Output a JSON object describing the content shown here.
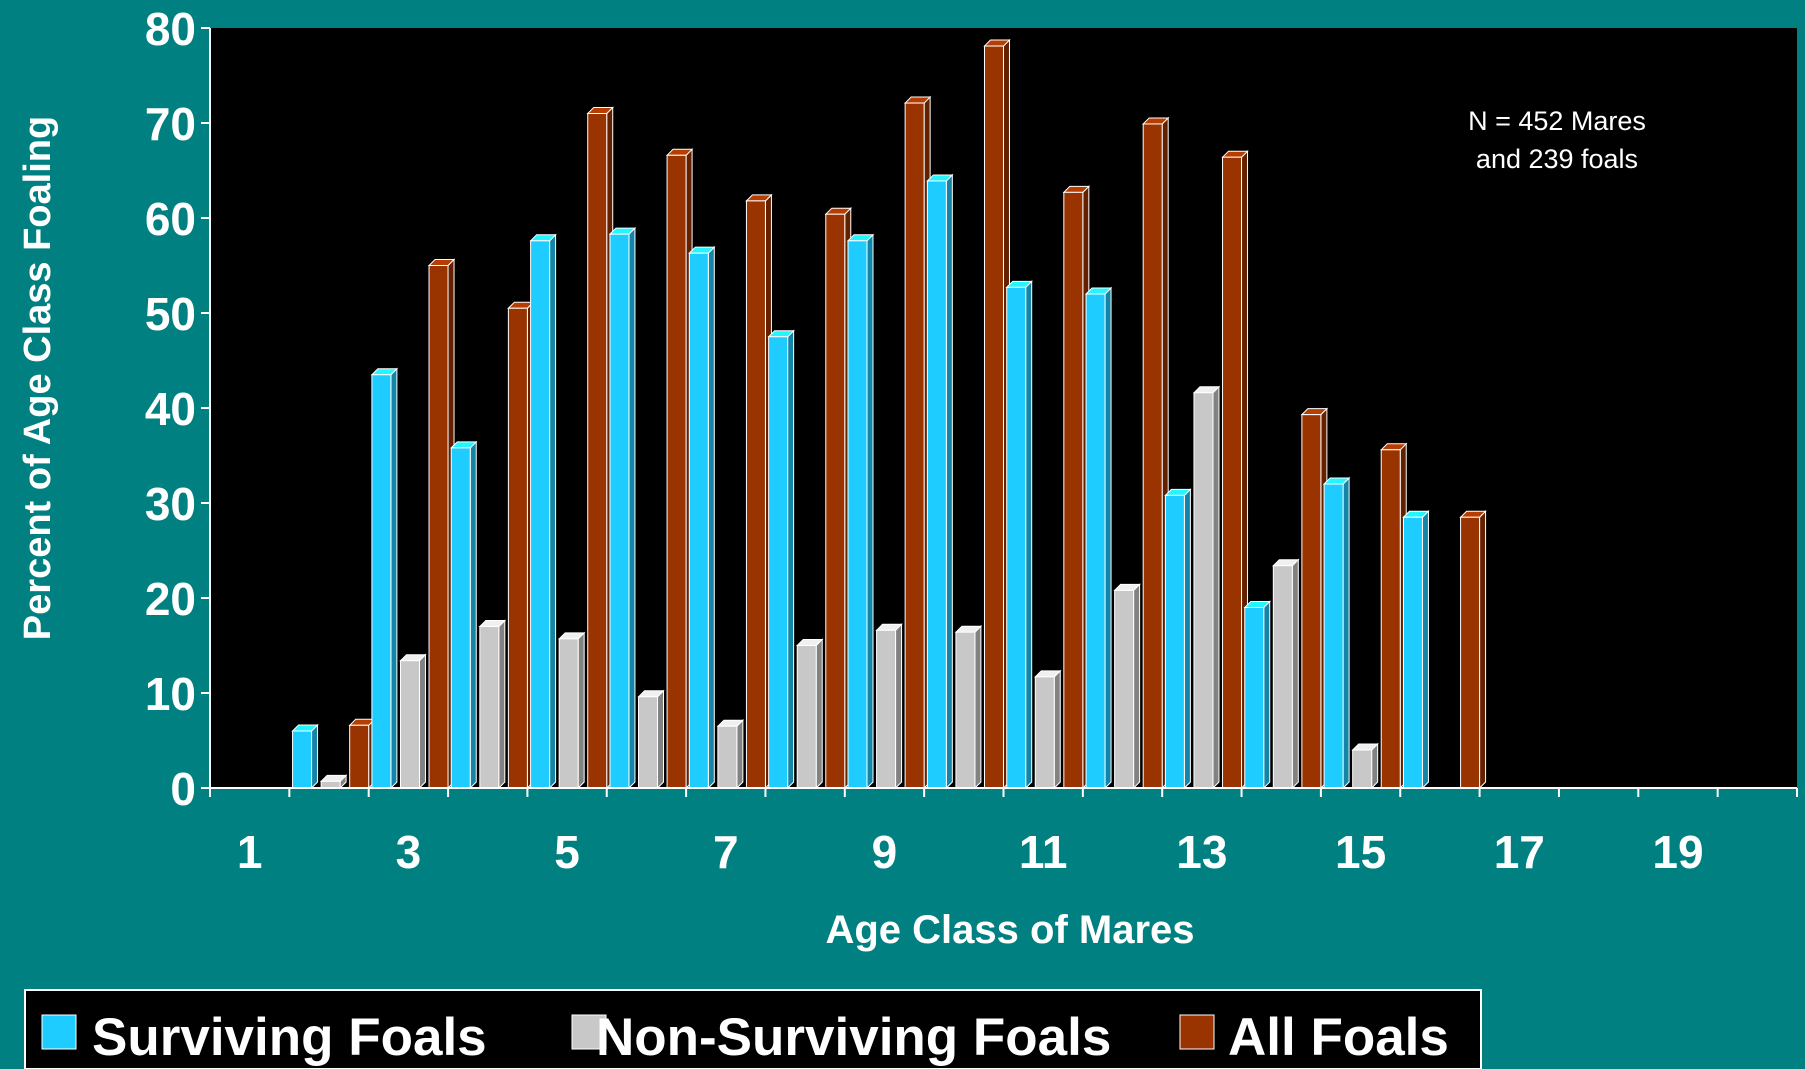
{
  "chart_data": {
    "type": "bar",
    "title": "",
    "xlabel": "Age Class of Mares",
    "ylabel": "Percent of Age Class Foaling",
    "ylim": [
      0,
      80
    ],
    "yticks": [
      "0",
      "10",
      "20",
      "30",
      "40",
      "50",
      "60",
      "70",
      "80"
    ],
    "categories": [
      1,
      2,
      3,
      4,
      5,
      6,
      7,
      8,
      9,
      10,
      11,
      12,
      13,
      14,
      15,
      16,
      17,
      18,
      19,
      20
    ],
    "xtick_labels": [
      "1",
      "3",
      "5",
      "7",
      "9",
      "11",
      "13",
      "15",
      "17",
      "19"
    ],
    "grid": false,
    "legend_position": "bottom-left",
    "annotation": [
      "N = 452 Mares",
      "and 239 foals"
    ],
    "series": [
      {
        "name": "Surviving Foals",
        "color": "#1ECCFF",
        "values": [
          0,
          6,
          43.5,
          35.8,
          57.6,
          58.3,
          56.3,
          47.5,
          57.6,
          63.9,
          52.7,
          52,
          30.8,
          19,
          32,
          28.5,
          0,
          0,
          0,
          0
        ]
      },
      {
        "name": "Non-Surviving Foals",
        "color": "#C8C8C8",
        "values": [
          0,
          0.7,
          13.4,
          17,
          15.7,
          9.6,
          6.5,
          15,
          16.6,
          16.4,
          11.7,
          20.8,
          41.6,
          23.4,
          4,
          0,
          0,
          0,
          0,
          0
        ]
      },
      {
        "name": "All Foals",
        "color": "#993300",
        "values": [
          0,
          6.6,
          55,
          50.5,
          71,
          66.6,
          61.8,
          60.4,
          72.1,
          78.1,
          62.7,
          69.9,
          66.4,
          39.3,
          35.6,
          28.5,
          0,
          0,
          0,
          0
        ]
      }
    ]
  }
}
